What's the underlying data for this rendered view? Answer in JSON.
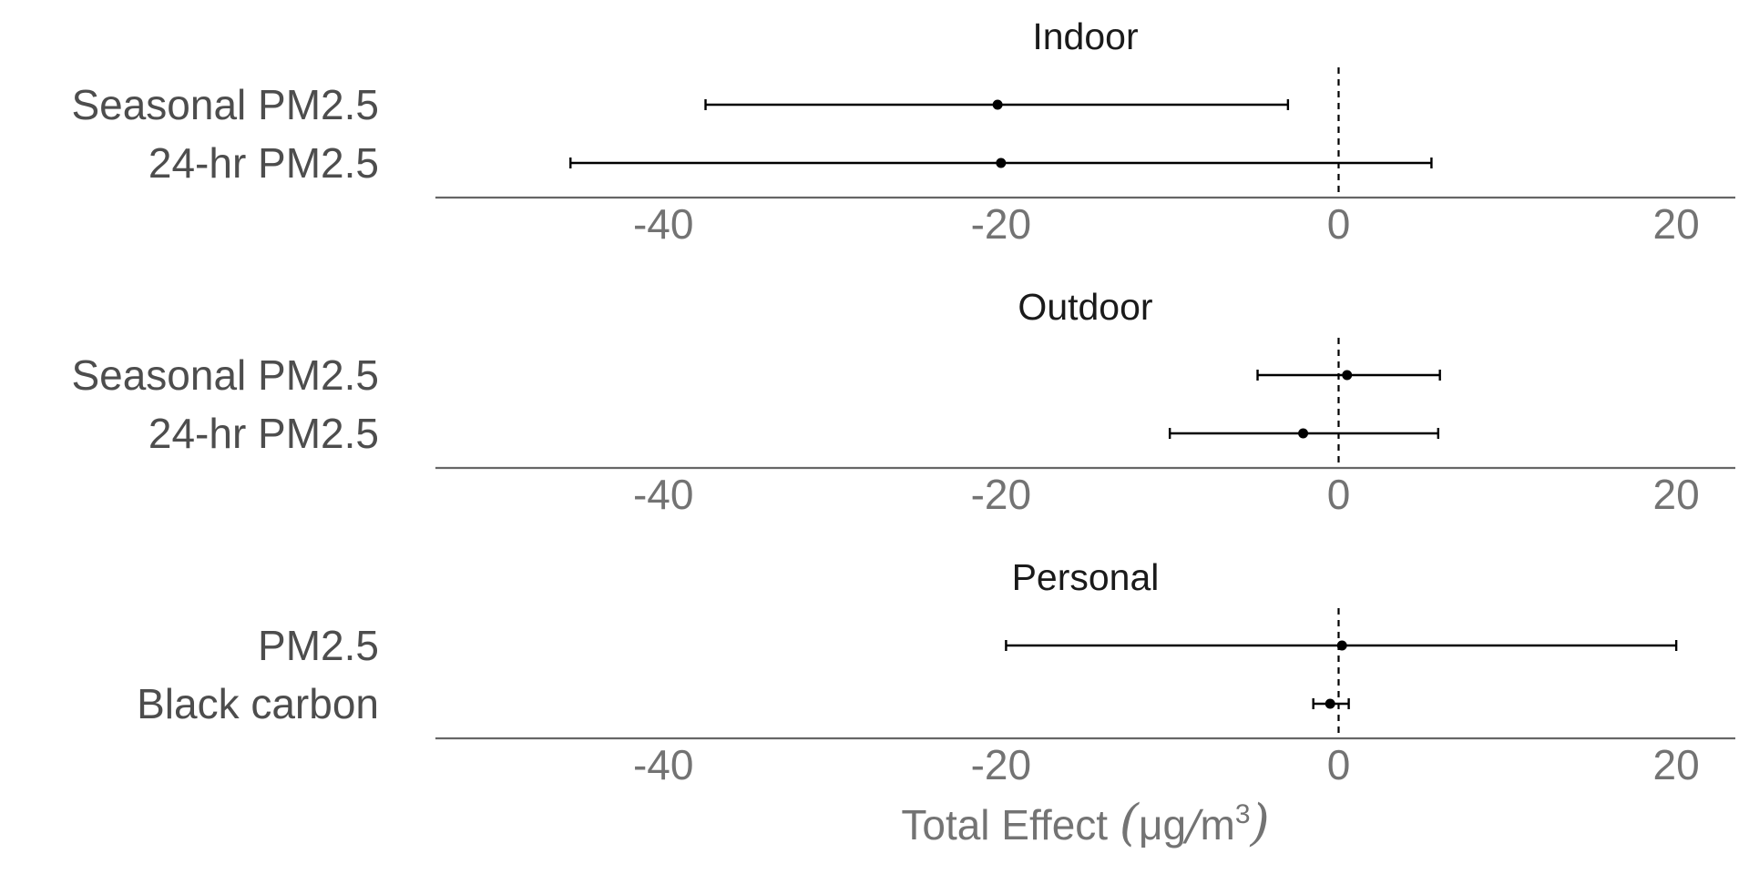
{
  "chart_data": {
    "type": "forest",
    "xlabel": "Total Effect (μg/m3)",
    "xlabel_parts": {
      "prefix": "Total Effect ",
      "unit": "μg",
      "slash": "/",
      "unit2": "m",
      "superscript": "3"
    },
    "xlim": [
      -53.5,
      23.5
    ],
    "x_ticks": [
      -40,
      -20,
      0,
      20
    ],
    "reference_line": 0,
    "grid": false,
    "panels": [
      {
        "title": "Indoor",
        "rows": [
          {
            "label": "Seasonal PM2.5",
            "estimate": -20.2,
            "lower": -37.5,
            "upper": -3.0
          },
          {
            "label": "24-hr PM2.5",
            "estimate": -20.0,
            "lower": -45.5,
            "upper": 5.5
          }
        ]
      },
      {
        "title": "Outdoor",
        "rows": [
          {
            "label": "Seasonal PM2.5",
            "estimate": 0.5,
            "lower": -4.8,
            "upper": 6.0
          },
          {
            "label": "24-hr PM2.5",
            "estimate": -2.1,
            "lower": -10.0,
            "upper": 5.9
          }
        ]
      },
      {
        "title": "Personal",
        "rows": [
          {
            "label": "PM2.5",
            "estimate": 0.2,
            "lower": -19.7,
            "upper": 20.0
          },
          {
            "label": "Black carbon",
            "estimate": -0.5,
            "lower": -1.5,
            "upper": 0.6
          }
        ]
      }
    ]
  }
}
